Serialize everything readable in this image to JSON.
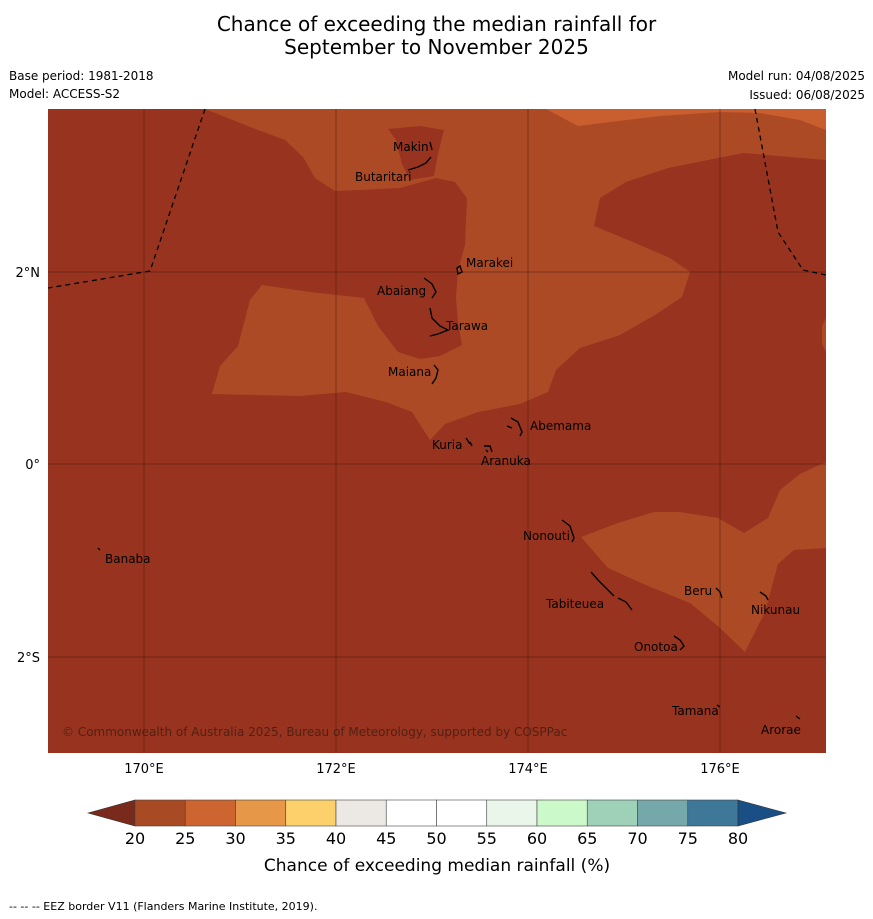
{
  "title": {
    "line1": "Chance of exceeding the median rainfall for",
    "line2": "September to November 2025"
  },
  "meta": {
    "base_period": "Base period: 1981-2018",
    "model": "Model: ACCESS-S2",
    "model_run": "Model run: 04/08/2025",
    "issued": "Issued: 06/08/2025"
  },
  "axes": {
    "x_ticks": [
      "170°E",
      "172°E",
      "174°E",
      "176°E"
    ],
    "y_ticks": [
      "2°N",
      "0°",
      "2°S"
    ]
  },
  "places": {
    "makin": "Makin",
    "butaritari": "Butaritari",
    "marakei": "Marakei",
    "abaiang": "Abaiang",
    "tarawa": "Tarawa",
    "maiana": "Maiana",
    "abemama": "Abemama",
    "kuria": "Kuria",
    "aranuka": "Aranuka",
    "banaba": "Banaba",
    "nonouti": "Nonouti",
    "beru": "Beru",
    "tabiteuea": "Tabiteuea",
    "nikunau": "Nikunau",
    "onotoa": "Onotoa",
    "tamana": "Tamana",
    "arorae": "Arorae"
  },
  "copyright": "© Commonwealth of Australia 2025, Bureau of Meteorology, supported by COSPPac",
  "colorbar": {
    "title": "Chance of exceeding median rainfall (%)",
    "ticks": [
      "20",
      "25",
      "30",
      "35",
      "40",
      "45",
      "50",
      "55",
      "60",
      "65",
      "70",
      "75",
      "80"
    ],
    "low_color": "#7a2a1a",
    "high_color": "#1a4f86",
    "colors": [
      "#a84a24",
      "#cc6530",
      "#e69848",
      "#fcd06a",
      "#ece8e4",
      "#ffffff",
      "#ffffff",
      "#eaf6ea",
      "#cbf9c9",
      "#9ed1b8",
      "#75a8a8",
      "#3e7898"
    ]
  },
  "map_colors": {
    "below_20": "#98331f",
    "range_20_25": "#ad4a26",
    "range_25_30": "#c95f2f",
    "grid": "#4a1a10",
    "coast": "#000000"
  },
  "footer": "--  --  -- EEZ border V11 (Flanders Marine Institute, 2019)."
}
